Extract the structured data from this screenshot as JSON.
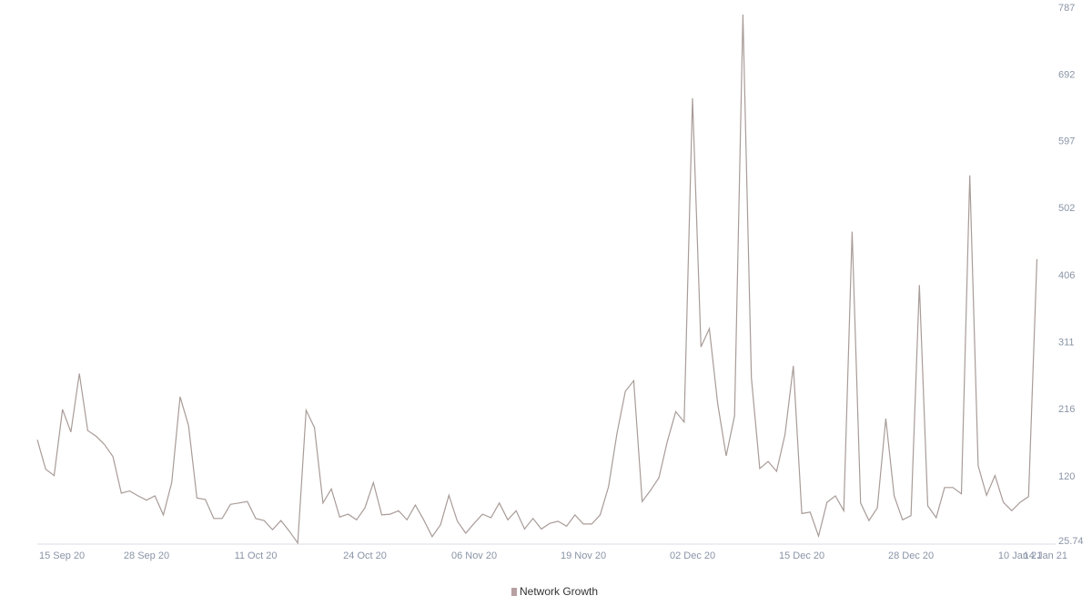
{
  "chart_data": {
    "type": "line",
    "categories": [
      "15 Sep 20",
      null,
      null,
      null,
      null,
      null,
      null,
      null,
      null,
      null,
      null,
      null,
      null,
      "28 Sep 20",
      null,
      null,
      null,
      null,
      null,
      null,
      null,
      null,
      null,
      null,
      null,
      null,
      "11 Oct 20",
      null,
      null,
      null,
      null,
      null,
      null,
      null,
      null,
      null,
      null,
      null,
      null,
      "24 Oct 20",
      null,
      null,
      null,
      null,
      null,
      null,
      null,
      null,
      null,
      null,
      null,
      null,
      "06 Nov 20",
      null,
      null,
      null,
      null,
      null,
      null,
      null,
      null,
      null,
      null,
      null,
      null,
      "19 Nov 20",
      null,
      null,
      null,
      null,
      null,
      null,
      null,
      null,
      null,
      null,
      null,
      null,
      "02 Dec 20",
      null,
      null,
      null,
      null,
      null,
      null,
      null,
      null,
      null,
      null,
      null,
      null,
      "15 Dec 20",
      null,
      null,
      null,
      null,
      null,
      null,
      null,
      null,
      null,
      null,
      null,
      null,
      "28 Dec 20",
      null,
      null,
      null,
      null,
      null,
      null,
      null,
      null,
      null,
      null,
      null,
      null,
      "10 Jan 21",
      null,
      null,
      null,
      "14 Jan 21"
    ],
    "series": [
      {
        "name": "Network Growth",
        "color": "#a89c98",
        "legend_color": "#b8a0a2",
        "values": [
          173,
          131,
          122,
          216,
          184,
          267,
          186,
          178,
          166,
          149,
          97,
          100,
          93,
          87,
          93,
          66,
          112,
          234,
          193,
          90,
          88,
          61,
          61,
          81,
          83,
          85,
          61,
          58,
          45,
          58,
          43,
          26,
          215,
          190,
          83,
          103,
          63,
          67,
          59,
          76,
          112,
          66,
          67,
          72,
          59,
          80,
          59,
          35,
          52,
          94,
          57,
          40,
          54,
          67,
          62,
          83,
          59,
          72,
          46,
          61,
          46,
          54,
          57,
          50,
          66,
          53,
          53,
          66,
          106,
          182,
          242,
          257,
          85,
          101,
          119,
          171,
          213,
          198,
          659,
          305,
          331,
          224,
          150,
          207,
          778,
          261,
          132,
          142,
          128,
          180,
          278,
          68,
          70,
          36,
          84,
          93,
          72,
          469,
          83,
          58,
          76,
          203,
          93,
          59,
          65,
          393,
          79,
          62,
          105,
          105,
          96,
          549,
          136,
          94,
          122,
          84,
          72,
          84,
          92,
          430,
          null,
          null
        ]
      }
    ],
    "ylim": [
      25.74,
      787
    ],
    "yticks": [
      25.74,
      120,
      216,
      311,
      406,
      502,
      597,
      692,
      787
    ],
    "grid": false,
    "legend": "bottom"
  }
}
